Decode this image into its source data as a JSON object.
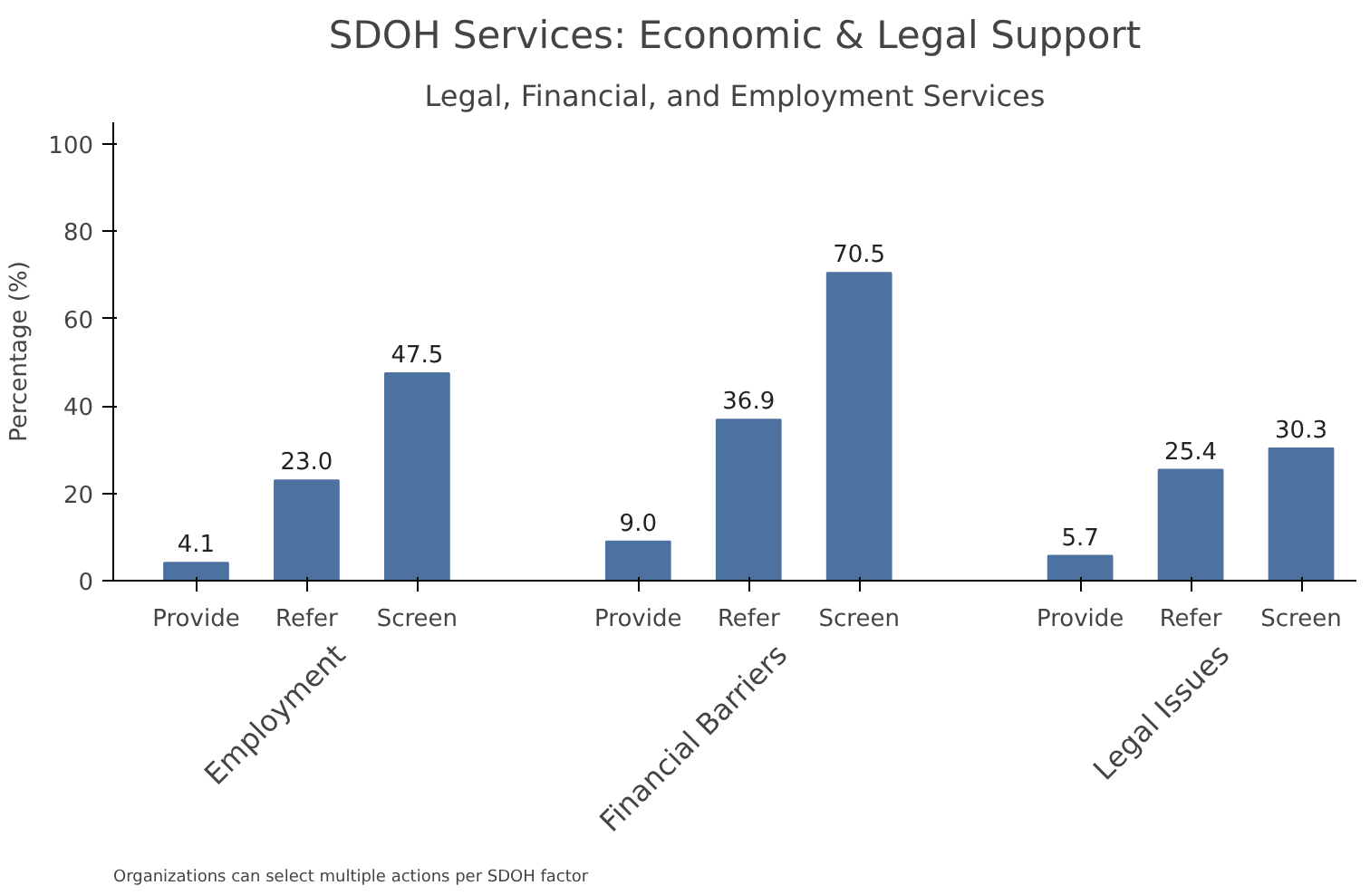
{
  "chart_data": {
    "type": "bar",
    "title": "SDOH Services: Economic & Legal Support",
    "subtitle": "Legal, Financial, and Employment Services",
    "ylabel": "Percentage (%)",
    "categories": [
      "Provide",
      "Refer",
      "Screen",
      null,
      "Provide",
      "Refer",
      "Screen",
      null,
      "Provide",
      "Refer",
      "Screen"
    ],
    "values": [
      4.1,
      23.0,
      47.5,
      null,
      9.0,
      36.9,
      70.5,
      null,
      5.7,
      25.4,
      30.3
    ],
    "value_labels": [
      "4.1",
      "23.0",
      "47.5",
      null,
      "9.0",
      "36.9",
      "70.5",
      null,
      "5.7",
      "25.4",
      "30.3"
    ],
    "color": "#4e72a0",
    "ylim": [
      0,
      105
    ],
    "yticks": [
      0,
      20,
      40,
      60,
      80,
      100
    ],
    "annotations": [
      "Employment",
      "Financial Barriers",
      "Legal Issues",
      "Organizations can select multiple actions per SDOH factor"
    ]
  }
}
